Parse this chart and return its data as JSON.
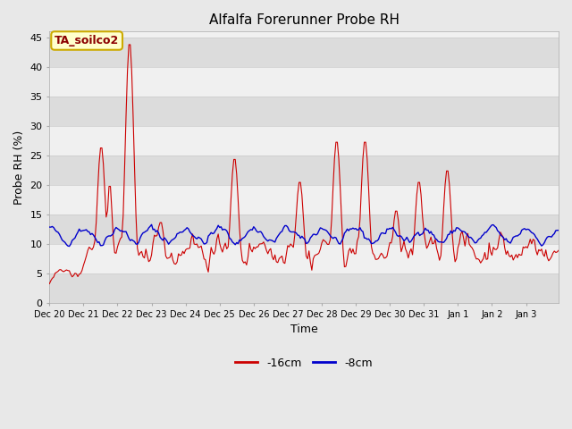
{
  "title": "Alfalfa Forerunner Probe RH",
  "xlabel": "Time",
  "ylabel": "Probe RH (%)",
  "annotation": "TA_soilco2",
  "legend_16cm": "-16cm",
  "legend_8cm": "-8cm",
  "color_16cm": "#cc0000",
  "color_8cm": "#0000cc",
  "ylim": [
    0,
    46
  ],
  "yticks": [
    0,
    5,
    10,
    15,
    20,
    25,
    30,
    35,
    40,
    45
  ],
  "bg_color": "#e8e8e8",
  "plot_bg_color": "#ffffff",
  "band_colors": [
    "#dcdcdc",
    "#f0f0f0"
  ],
  "band_edges": [
    0,
    5,
    10,
    15,
    20,
    25,
    30,
    35,
    40,
    45,
    50
  ],
  "annotation_bg": "#ffffcc",
  "annotation_border": "#ccaa00",
  "grid_color": "#cccccc",
  "figsize": [
    6.4,
    4.8
  ],
  "dpi": 100
}
